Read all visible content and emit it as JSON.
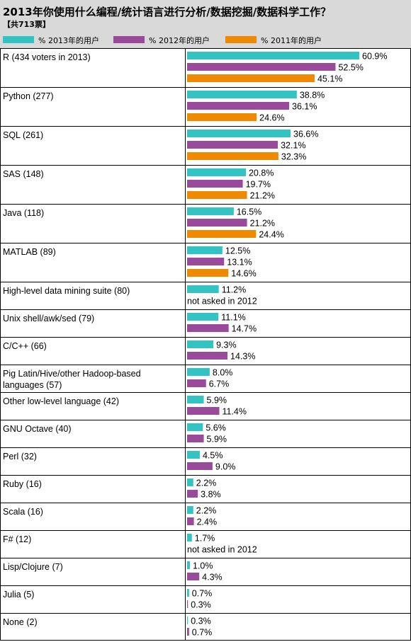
{
  "chart_data": {
    "type": "bar",
    "title": "2013年你使用什么编程/统计语言进行分析/数据挖掘/数据科学工作？",
    "subtitle": "【共713票】",
    "legend": [
      {
        "name": "%  2013年的用户",
        "color": "#33c3c3"
      },
      {
        "name": "%  2012年的用户",
        "color": "#9a4a9a"
      },
      {
        "name": "%   2011年的用户",
        "color": "#ef8a00"
      }
    ],
    "categories": [
      "R (434 voters in 2013)",
      "Python (277)",
      "SQL (261)",
      "SAS (148)",
      "Java (118)",
      "MATLAB (89)",
      "High-level data mining suite (80)",
      "Unix shell/awk/sed (79)",
      "C/C++ (66)",
      "Pig Latin/Hive/other Hadoop-based languages (57)",
      "Other low-level language (42)",
      "GNU Octave (40)",
      "Perl (32)",
      "Ruby (16)",
      "Scala (16)",
      "F# (12)",
      "Lisp/Clojure (7)",
      "Julia (5)",
      "None (2)"
    ],
    "series": [
      {
        "name": "%  2013年的用户",
        "values": [
          60.9,
          38.8,
          36.6,
          20.8,
          16.5,
          12.5,
          11.2,
          11.1,
          9.3,
          8.0,
          5.9,
          5.6,
          4.5,
          2.2,
          2.2,
          1.7,
          1.0,
          0.7,
          0.3
        ]
      },
      {
        "name": "%  2012年的用户",
        "values": [
          52.5,
          36.1,
          32.1,
          19.7,
          21.2,
          13.1,
          null,
          14.7,
          14.3,
          6.7,
          11.4,
          5.9,
          9.0,
          3.8,
          2.4,
          null,
          4.3,
          0.3,
          0.7
        ]
      },
      {
        "name": "%   2011年的用户",
        "values": [
          45.1,
          24.6,
          32.3,
          21.2,
          24.4,
          14.6,
          null,
          null,
          null,
          null,
          null,
          null,
          null,
          null,
          null,
          null,
          null,
          null,
          null
        ]
      }
    ],
    "value_labels": {
      "2013": [
        "60.9%",
        "38.8%",
        "36.6%",
        "20.8%",
        "16.5%",
        "12.5%",
        "11.2%",
        "11.1%",
        "9.3%",
        "8.0%",
        "5.9%",
        "5.6%",
        "4.5%",
        "2.2%",
        "2.2%",
        "1.7%",
        "1.0%",
        "0.7%",
        "0.3%"
      ],
      "2012": [
        "52.5%",
        "36.1%",
        "32.1%",
        "19.7%",
        "21.2%",
        "13.1%",
        "not asked in 2012",
        "14.7%",
        "14.3%",
        "6.7%",
        "11.4%",
        "5.9%",
        "9.0%",
        "3.8%",
        "2.4%",
        "not asked in 2012",
        "4.3%",
        "0.3%",
        "0.7%"
      ],
      "2011": [
        "45.1%",
        "24.6%",
        "32.3%",
        "21.2%",
        "24.4%",
        "14.6%",
        null,
        null,
        null,
        null,
        null,
        null,
        null,
        null,
        null,
        null,
        null,
        null,
        null
      ]
    },
    "xlim": [
      0,
      100
    ],
    "grid": false
  }
}
